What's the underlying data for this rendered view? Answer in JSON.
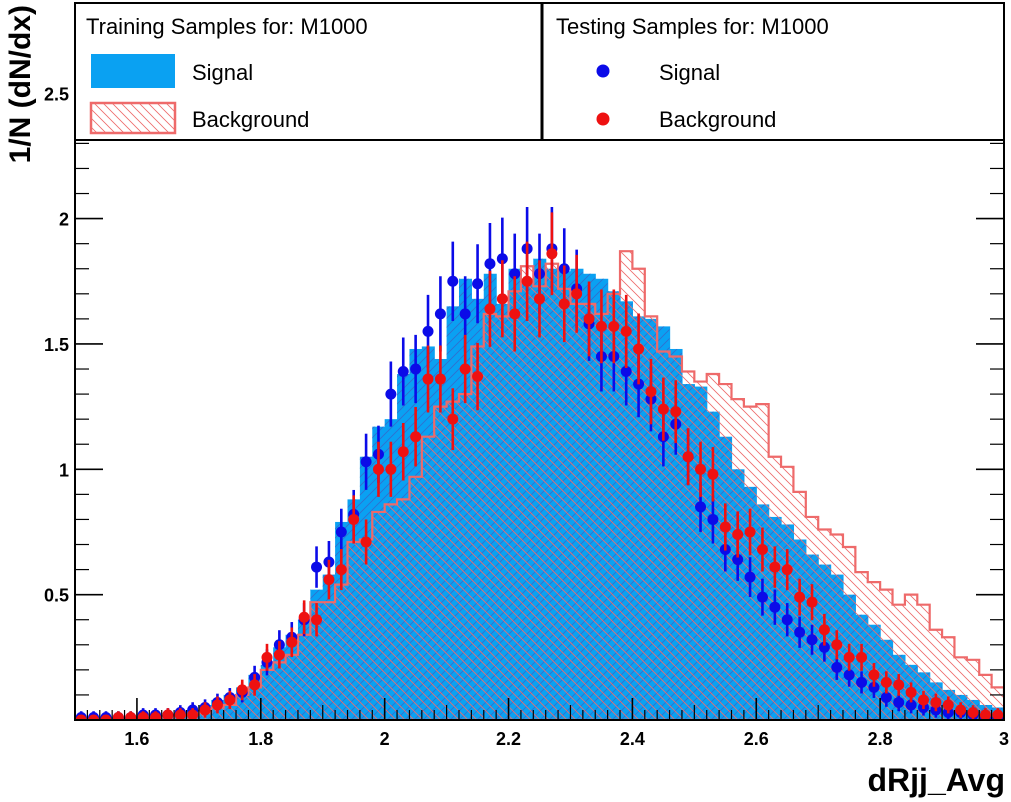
{
  "colors": {
    "train_signal": "#0aa1f2",
    "train_signal_hatch": "#2f6fd0",
    "train_background": "#ee6a6a",
    "test_signal": "#0b0be8",
    "test_background": "#ee1111"
  },
  "chart_data": {
    "type": "histogram",
    "xlabel": "dRjj_Avg",
    "ylabel": "1/N (dN/dx)",
    "xlim": [
      1.5,
      3.0
    ],
    "ylim": [
      0.0,
      2.86
    ],
    "x_ticks": [
      "1.6",
      "1.8",
      "2",
      "2.2",
      "2.4",
      "2.6",
      "2.8",
      "3"
    ],
    "y_ticks": [
      "0.5",
      "1",
      "1.5",
      "2",
      "2.5"
    ],
    "legend": {
      "left_title": "Training Samples for: M1000",
      "right_title": "Testing Samples for: M1000",
      "left_entries": [
        "Signal",
        "Background"
      ],
      "right_entries": [
        "Signal",
        "Background"
      ]
    },
    "bin_edges_start": 1.5,
    "bin_width": 0.02,
    "series": [
      {
        "name": "Signal",
        "style": "filled-histogram",
        "sample": "training",
        "values": [
          0.01,
          0.01,
          0.01,
          0.01,
          0.01,
          0.01,
          0.02,
          0.02,
          0.03,
          0.04,
          0.06,
          0.08,
          0.1,
          0.13,
          0.18,
          0.22,
          0.29,
          0.34,
          0.4,
          0.52,
          0.58,
          0.79,
          0.88,
          1.05,
          1.17,
          1.2,
          1.38,
          1.48,
          1.49,
          1.44,
          1.65,
          1.76,
          1.68,
          1.78,
          1.66,
          1.8,
          1.76,
          1.84,
          1.8,
          1.79,
          1.8,
          1.78,
          1.76,
          1.71,
          1.67,
          1.61,
          1.6,
          1.57,
          1.48,
          1.34,
          1.33,
          1.23,
          1.13,
          1.0,
          0.93,
          0.86,
          0.81,
          0.78,
          0.72,
          0.66,
          0.62,
          0.58,
          0.5,
          0.42,
          0.38,
          0.32,
          0.26,
          0.22,
          0.19,
          0.15,
          0.12,
          0.1,
          0.08,
          0.06,
          0.05,
          0.04,
          0.03,
          0.02,
          0.01,
          0.01
        ]
      },
      {
        "name": "Background",
        "style": "hatched-outline",
        "sample": "training",
        "values": [
          0.0,
          0.0,
          0.0,
          0.0,
          0.0,
          0.01,
          0.01,
          0.01,
          0.02,
          0.02,
          0.03,
          0.05,
          0.06,
          0.1,
          0.13,
          0.2,
          0.23,
          0.26,
          0.34,
          0.47,
          0.47,
          0.54,
          0.71,
          0.72,
          0.83,
          0.86,
          0.88,
          0.97,
          1.13,
          1.25,
          1.27,
          1.3,
          1.49,
          1.62,
          1.61,
          1.71,
          1.81,
          1.73,
          1.82,
          1.72,
          1.66,
          1.66,
          1.62,
          1.7,
          1.87,
          1.8,
          1.61,
          1.47,
          1.45,
          1.39,
          1.35,
          1.38,
          1.34,
          1.28,
          1.25,
          1.26,
          1.05,
          1.01,
          0.91,
          0.81,
          0.76,
          0.74,
          0.69,
          0.59,
          0.55,
          0.52,
          0.46,
          0.5,
          0.46,
          0.36,
          0.33,
          0.25,
          0.24,
          0.18,
          0.13,
          0.1,
          0.06,
          0.05,
          0.03,
          0.02
        ]
      },
      {
        "name": "Signal",
        "style": "points",
        "sample": "testing",
        "values": [
          0.01,
          0.01,
          0.01,
          0.01,
          0.01,
          0.02,
          0.02,
          0.02,
          0.03,
          0.04,
          0.05,
          0.07,
          0.09,
          0.11,
          0.17,
          0.23,
          0.3,
          0.33,
          0.4,
          0.61,
          0.63,
          0.75,
          0.82,
          1.03,
          1.06,
          1.3,
          1.39,
          1.4,
          1.55,
          1.62,
          1.75,
          1.62,
          1.74,
          1.82,
          1.84,
          1.78,
          1.88,
          1.78,
          1.88,
          1.8,
          1.72,
          1.58,
          1.45,
          1.45,
          1.39,
          1.34,
          1.28,
          1.13,
          1.18,
          1.05,
          0.85,
          0.8,
          0.68,
          0.64,
          0.57,
          0.49,
          0.45,
          0.4,
          0.35,
          0.32,
          0.29,
          0.21,
          0.18,
          0.15,
          0.13,
          0.09,
          0.07,
          0.06,
          0.05,
          0.04,
          0.03,
          0.03,
          0.02,
          0.01,
          0.01,
          0.01,
          0.01,
          0.01,
          0.01,
          0.01
        ]
      },
      {
        "name": "Background",
        "style": "points",
        "sample": "testing",
        "values": [
          0.0,
          0.0,
          0.0,
          0.01,
          0.01,
          0.01,
          0.01,
          0.02,
          0.02,
          0.02,
          0.04,
          0.06,
          0.08,
          0.12,
          0.14,
          0.25,
          0.26,
          0.31,
          0.41,
          0.4,
          0.56,
          0.6,
          0.8,
          0.71,
          1.0,
          1.0,
          1.07,
          1.13,
          1.36,
          1.36,
          1.2,
          1.4,
          1.37,
          1.64,
          1.68,
          1.62,
          1.75,
          1.68,
          1.86,
          1.66,
          1.7,
          1.6,
          1.57,
          1.57,
          1.55,
          1.48,
          1.31,
          1.24,
          1.23,
          1.05,
          1.0,
          0.98,
          0.77,
          0.74,
          0.75,
          0.68,
          0.61,
          0.6,
          0.49,
          0.47,
          0.36,
          0.3,
          0.25,
          0.25,
          0.18,
          0.15,
          0.14,
          0.11,
          0.08,
          0.07,
          0.06,
          0.04,
          0.03,
          0.02,
          0.02,
          0.01,
          0.01,
          0.01,
          0.01,
          0.01
        ]
      }
    ]
  }
}
